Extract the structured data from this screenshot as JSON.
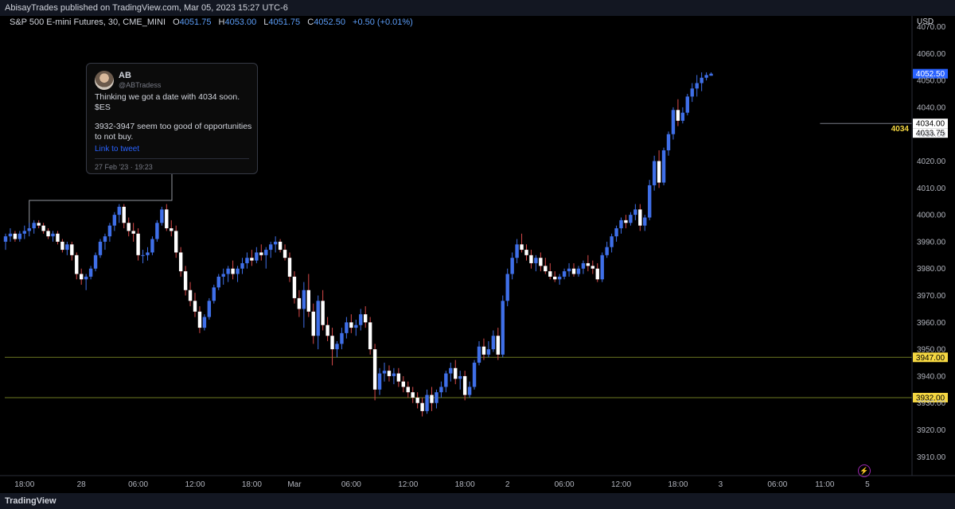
{
  "header": {
    "published": "AbisayTrades published on TradingView.com, Mar 05, 2023 15:27 UTC-6"
  },
  "legend": {
    "symbol": "S&P 500 E-mini Futures, 30, CME_MINI",
    "o_label": "O",
    "o": "4051.75",
    "h_label": "H",
    "h": "4053.00",
    "l_label": "L",
    "l": "4051.75",
    "c_label": "C",
    "c": "4052.50",
    "change": "+0.50 (+0.01%)"
  },
  "tweet": {
    "name": "AB",
    "handle": "@ABTradess",
    "line1": "Thinking we got a date with 4034 soon.",
    "line2": "$ES",
    "line3": "3932-3947 seem too good of opportunities to not buy.",
    "link": "Link to tweet",
    "date": "27 Feb '23 · 19:23"
  },
  "footer": {
    "brand": "TradingView"
  },
  "colors": {
    "up": "#3f6fe8",
    "down": "#ffffff",
    "wick_up": "#3f6fe8",
    "wick_down": "#d84a4a",
    "level": "#6e7a22",
    "label_yellow": "#f5d742",
    "price_blue": "#2962ff"
  },
  "chart_data": {
    "type": "candlestick",
    "axis_currency": "USD",
    "ylim": [
      3903,
      4074
    ],
    "yticks": [
      "3910.00",
      "3920.00",
      "3930.00",
      "3940.00",
      "3950.00",
      "3960.00",
      "3970.00",
      "3980.00",
      "3990.00",
      "4000.00",
      "4010.00",
      "4020.00",
      "4030.00",
      "4040.00",
      "4050.00",
      "4060.00",
      "4070.00"
    ],
    "xticks": [
      "18:00",
      "28",
      "06:00",
      "12:00",
      "18:00",
      "Mar",
      "06:00",
      "12:00",
      "18:00",
      "2",
      "06:00",
      "12:00",
      "18:00",
      "3",
      "06:00",
      "11:00",
      "5"
    ],
    "xtick_index": [
      4,
      16,
      28,
      40,
      52,
      61,
      73,
      85,
      97,
      106,
      118,
      130,
      142,
      151,
      163,
      173,
      182
    ],
    "levels": [
      {
        "price": 3947,
        "label": "3947.00"
      },
      {
        "price": 3932,
        "label": "3932.00"
      }
    ],
    "target": {
      "price": 4034,
      "label": "4034",
      "axis_labels": [
        "4034.00",
        "4033.75"
      ]
    },
    "last_price": {
      "price": 4052.5,
      "label": "4052.50"
    },
    "candles": [
      [
        3990,
        3993,
        3987,
        3992
      ],
      [
        3992,
        3995,
        3990,
        3993
      ],
      [
        3993,
        3994,
        3990,
        3991
      ],
      [
        3991,
        3994,
        3990,
        3993
      ],
      [
        3993,
        3996,
        3991,
        3994
      ],
      [
        3994,
        3997,
        3992,
        3995
      ],
      [
        3995,
        3998,
        3993,
        3997
      ],
      [
        3997,
        3998,
        3995,
        3996
      ],
      [
        3996,
        3997,
        3993,
        3994
      ],
      [
        3994,
        3995,
        3991,
        3992
      ],
      [
        3992,
        3994,
        3990,
        3993
      ],
      [
        3993,
        3994,
        3989,
        3990
      ],
      [
        3990,
        3991,
        3986,
        3987
      ],
      [
        3987,
        3990,
        3985,
        3989
      ],
      [
        3989,
        3990,
        3983,
        3985
      ],
      [
        3985,
        3986,
        3976,
        3978
      ],
      [
        3978,
        3980,
        3974,
        3976
      ],
      [
        3976,
        3978,
        3972,
        3977
      ],
      [
        3977,
        3981,
        3976,
        3980
      ],
      [
        3980,
        3986,
        3979,
        3985
      ],
      [
        3985,
        3991,
        3984,
        3990
      ],
      [
        3990,
        3993,
        3987,
        3992
      ],
      [
        3992,
        3997,
        3990,
        3996
      ],
      [
        3996,
        4001,
        3994,
        4000
      ],
      [
        4000,
        4004,
        3997,
        4003
      ],
      [
        4003,
        4004,
        3995,
        3997
      ],
      [
        3997,
        3999,
        3992,
        3994
      ],
      [
        3994,
        3997,
        3990,
        3993
      ],
      [
        3993,
        3995,
        3983,
        3985
      ],
      [
        3985,
        3987,
        3982,
        3985
      ],
      [
        3985,
        3988,
        3983,
        3986
      ],
      [
        3986,
        3992,
        3985,
        3991
      ],
      [
        3991,
        3998,
        3990,
        3997
      ],
      [
        3997,
        4003,
        3996,
        4002
      ],
      [
        4002,
        4004,
        3994,
        3995
      ],
      [
        3995,
        3998,
        3992,
        3994
      ],
      [
        3994,
        3996,
        3984,
        3986
      ],
      [
        3986,
        3988,
        3977,
        3979
      ],
      [
        3979,
        3981,
        3970,
        3972
      ],
      [
        3972,
        3975,
        3966,
        3968
      ],
      [
        3968,
        3971,
        3962,
        3964
      ],
      [
        3964,
        3966,
        3956,
        3958
      ],
      [
        3958,
        3963,
        3957,
        3962
      ],
      [
        3962,
        3969,
        3961,
        3968
      ],
      [
        3968,
        3974,
        3967,
        3973
      ],
      [
        3973,
        3978,
        3972,
        3977
      ],
      [
        3977,
        3980,
        3974,
        3978
      ],
      [
        3978,
        3981,
        3975,
        3980
      ],
      [
        3980,
        3983,
        3976,
        3978
      ],
      [
        3978,
        3981,
        3975,
        3980
      ],
      [
        3980,
        3984,
        3978,
        3982
      ],
      [
        3982,
        3986,
        3980,
        3984
      ],
      [
        3984,
        3987,
        3981,
        3983
      ],
      [
        3983,
        3988,
        3982,
        3986
      ],
      [
        3986,
        3989,
        3983,
        3985
      ],
      [
        3985,
        3988,
        3980,
        3987
      ],
      [
        3987,
        3990,
        3984,
        3989
      ],
      [
        3989,
        3992,
        3986,
        3990
      ],
      [
        3990,
        3991,
        3986,
        3987
      ],
      [
        3987,
        3989,
        3983,
        3984
      ],
      [
        3984,
        3986,
        3975,
        3977
      ],
      [
        3977,
        3979,
        3967,
        3969
      ],
      [
        3969,
        3972,
        3962,
        3965
      ],
      [
        3965,
        3975,
        3958,
        3972
      ],
      [
        3972,
        3978,
        3962,
        3964
      ],
      [
        3964,
        3967,
        3952,
        3955
      ],
      [
        3955,
        3970,
        3950,
        3968
      ],
      [
        3968,
        3972,
        3957,
        3959
      ],
      [
        3959,
        3962,
        3953,
        3955
      ],
      [
        3955,
        3958,
        3944,
        3950
      ],
      [
        3950,
        3953,
        3947,
        3952
      ],
      [
        3952,
        3958,
        3950,
        3956
      ],
      [
        3956,
        3962,
        3954,
        3960
      ],
      [
        3960,
        3963,
        3956,
        3958
      ],
      [
        3958,
        3961,
        3955,
        3959
      ],
      [
        3959,
        3965,
        3957,
        3963
      ],
      [
        3963,
        3966,
        3958,
        3960
      ],
      [
        3960,
        3962,
        3948,
        3950
      ],
      [
        3950,
        3952,
        3931,
        3935
      ],
      [
        3935,
        3943,
        3933,
        3941
      ],
      [
        3941,
        3945,
        3938,
        3942
      ],
      [
        3942,
        3944,
        3938,
        3940
      ],
      [
        3940,
        3943,
        3937,
        3941
      ],
      [
        3941,
        3943,
        3936,
        3938
      ],
      [
        3938,
        3940,
        3934,
        3936
      ],
      [
        3936,
        3938,
        3932,
        3934
      ],
      [
        3934,
        3936,
        3930,
        3932
      ],
      [
        3932,
        3934,
        3928,
        3930
      ],
      [
        3930,
        3932,
        3925,
        3927
      ],
      [
        3927,
        3935,
        3926,
        3933
      ],
      [
        3933,
        3936,
        3927,
        3930
      ],
      [
        3930,
        3935,
        3928,
        3934
      ],
      [
        3934,
        3938,
        3932,
        3936
      ],
      [
        3936,
        3942,
        3934,
        3941
      ],
      [
        3941,
        3945,
        3938,
        3943
      ],
      [
        3943,
        3946,
        3937,
        3939
      ],
      [
        3939,
        3942,
        3935,
        3940
      ],
      [
        3940,
        3942,
        3931,
        3933
      ],
      [
        3933,
        3938,
        3932,
        3936
      ],
      [
        3936,
        3946,
        3935,
        3945
      ],
      [
        3945,
        3953,
        3944,
        3951
      ],
      [
        3951,
        3954,
        3946,
        3948
      ],
      [
        3948,
        3953,
        3947,
        3950
      ],
      [
        3950,
        3957,
        3949,
        3955
      ],
      [
        3955,
        3958,
        3946,
        3948
      ],
      [
        3948,
        3970,
        3947,
        3968
      ],
      [
        3968,
        3980,
        3966,
        3978
      ],
      [
        3978,
        3986,
        3976,
        3984
      ],
      [
        3984,
        3991,
        3982,
        3989
      ],
      [
        3989,
        3993,
        3986,
        3987
      ],
      [
        3987,
        3989,
        3983,
        3985
      ],
      [
        3985,
        3987,
        3980,
        3982
      ],
      [
        3982,
        3985,
        3979,
        3984
      ],
      [
        3984,
        3986,
        3979,
        3981
      ],
      [
        3981,
        3984,
        3978,
        3979
      ],
      [
        3979,
        3982,
        3976,
        3977
      ],
      [
        3977,
        3979,
        3975,
        3976
      ],
      [
        3976,
        3978,
        3974,
        3977
      ],
      [
        3977,
        3980,
        3976,
        3979
      ],
      [
        3979,
        3982,
        3977,
        3980
      ],
      [
        3980,
        3982,
        3977,
        3978
      ],
      [
        3978,
        3981,
        3977,
        3980
      ],
      [
        3980,
        3983,
        3978,
        3982
      ],
      [
        3982,
        3985,
        3979,
        3981
      ],
      [
        3981,
        3983,
        3978,
        3980
      ],
      [
        3980,
        3982,
        3975,
        3976
      ],
      [
        3976,
        3986,
        3975,
        3985
      ],
      [
        3985,
        3990,
        3984,
        3988
      ],
      [
        3988,
        3993,
        3986,
        3992
      ],
      [
        3992,
        3996,
        3990,
        3995
      ],
      [
        3995,
        3999,
        3993,
        3998
      ],
      [
        3998,
        4000,
        3995,
        3997
      ],
      [
        3997,
        4001,
        3996,
        4000
      ],
      [
        4000,
        4004,
        3998,
        4002
      ],
      [
        4002,
        4004,
        3994,
        3996
      ],
      [
        3996,
        4000,
        3994,
        3999
      ],
      [
        3999,
        4013,
        3998,
        4011
      ],
      [
        4011,
        4022,
        4009,
        4020
      ],
      [
        4020,
        4024,
        4010,
        4012
      ],
      [
        4012,
        4025,
        4011,
        4024
      ],
      [
        4024,
        4031,
        4022,
        4030
      ],
      [
        4030,
        4040,
        4028,
        4039
      ],
      [
        4039,
        4043,
        4033,
        4035
      ],
      [
        4035,
        4040,
        4034,
        4038
      ],
      [
        4038,
        4045,
        4037,
        4044
      ],
      [
        4044,
        4049,
        4042,
        4047
      ],
      [
        4047,
        4052,
        4044,
        4049
      ],
      [
        4049,
        4053,
        4046,
        4051
      ],
      [
        4051,
        4053,
        4050,
        4052
      ],
      [
        4051.75,
        4053,
        4051.75,
        4052.5
      ]
    ]
  }
}
